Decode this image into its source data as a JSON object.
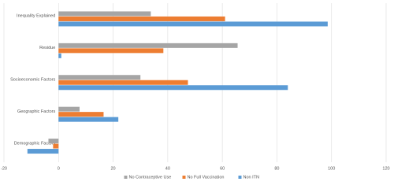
{
  "chart_data": {
    "type": "hbar",
    "categories": [
      "Inequality Explained",
      "Residue",
      "Socioeconomic Factors",
      "Geographic Factors",
      "Demographic Factors"
    ],
    "series": [
      {
        "name": "No Contraceptive Use",
        "color": "#a5a5a5",
        "values": [
          33.8,
          65.6,
          30,
          7.7,
          -3.7
        ]
      },
      {
        "name": "No Full Vaccination",
        "color": "#ed7d31",
        "values": [
          61,
          38.4,
          47.4,
          16.5,
          -2
        ]
      },
      {
        "name": "Non ITN",
        "color": "#5b9bd5",
        "values": [
          98.6,
          1,
          84,
          21.9,
          -11.4
        ]
      }
    ],
    "xlim": [
      -20,
      120
    ],
    "xticks": [
      -20,
      0,
      20,
      40,
      60,
      80,
      100,
      120
    ],
    "grid": true,
    "legend": "bottom"
  }
}
